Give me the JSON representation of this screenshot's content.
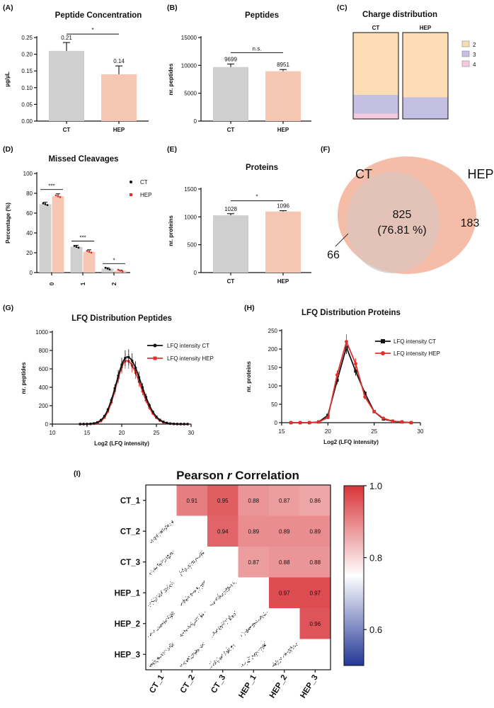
{
  "colors": {
    "ct_bar": "#cfcfcf",
    "hep_bar": "#f6c7b3",
    "charge2": "#fbdcb4",
    "charge3": "#c4c0e3",
    "charge4": "#f6c8de",
    "ct_line": "#111111",
    "hep_line": "#e0312f",
    "venn_ct": "#cfcfcf",
    "venn_hep": "#f4b79f"
  },
  "chart_data": [
    {
      "id": "A",
      "type": "bar",
      "panel_label": "(A)",
      "title": "Peptide Concentration",
      "ylabel": "µg/µL",
      "categories": [
        "CT",
        "HEP"
      ],
      "values": [
        0.21,
        0.14
      ],
      "errors": [
        0.025,
        0.025
      ],
      "value_labels": [
        "0.21",
        "0.14"
      ],
      "ylim": [
        0,
        0.25
      ],
      "yticks": [
        "0.00",
        "0.05",
        "0.10",
        "0.15",
        "0.20",
        "0.25"
      ],
      "significance": "*"
    },
    {
      "id": "B",
      "type": "bar",
      "panel_label": "(B)",
      "title": "Peptides",
      "ylabel": "nr. peptides",
      "categories": [
        "CT",
        "HEP"
      ],
      "values": [
        9699,
        8951
      ],
      "errors": [
        550,
        300
      ],
      "value_labels": [
        "9699",
        "8951"
      ],
      "ylim": [
        0,
        15000
      ],
      "yticks": [
        "0",
        "5000",
        "10000",
        "15000"
      ],
      "significance": "n.s."
    },
    {
      "id": "C",
      "type": "bar",
      "panel_label": "(C)",
      "title": "Charge distribution",
      "categories": [
        "CT",
        "HEP"
      ],
      "series": [
        {
          "name": "2",
          "values": [
            72,
            75
          ]
        },
        {
          "name": "3",
          "values": [
            22,
            25
          ]
        },
        {
          "name": "4",
          "values": [
            6,
            0
          ]
        }
      ],
      "legend": [
        "2",
        "3",
        "4"
      ]
    },
    {
      "id": "D",
      "type": "bar",
      "panel_label": "(D)",
      "title": "Missed Cleavages",
      "ylabel": "Percentage (%)",
      "categories": [
        "0",
        "1",
        "2"
      ],
      "series": [
        {
          "name": "CT",
          "values": [
            69,
            26,
            4
          ],
          "errors": [
            2,
            1.5,
            0.8
          ]
        },
        {
          "name": "HEP",
          "values": [
            77,
            21,
            2
          ],
          "errors": [
            2.5,
            2,
            0.5
          ]
        }
      ],
      "ylim": [
        0,
        100
      ],
      "yticks": [
        "0",
        "20",
        "40",
        "60",
        "80",
        "100"
      ],
      "significance": [
        "***",
        "***",
        "*"
      ],
      "legend": [
        "CT",
        "HEP"
      ]
    },
    {
      "id": "E",
      "type": "bar",
      "panel_label": "(E)",
      "title": "Proteins",
      "ylabel": "nr. proteins",
      "categories": [
        "CT",
        "HEP"
      ],
      "values": [
        1028,
        1096
      ],
      "errors": [
        30,
        15
      ],
      "value_labels": [
        "1028",
        "1096"
      ],
      "ylim": [
        0,
        1500
      ],
      "yticks": [
        "0",
        "500",
        "1000",
        "1500"
      ],
      "significance": "*"
    },
    {
      "id": "F",
      "type": "venn",
      "panel_label": "(F)",
      "sets": [
        "CT",
        "HEP"
      ],
      "ct_only": "66",
      "hep_only": "183",
      "overlap": "825",
      "overlap_pct": "(76.81 %)"
    },
    {
      "id": "G",
      "type": "line",
      "panel_label": "(G)",
      "title": "LFQ Distribution Peptides",
      "xlabel": "Log2 (LFQ intensity)",
      "ylabel": "nr. peptides",
      "xlim": [
        10,
        30
      ],
      "ylim": [
        0,
        1000
      ],
      "xticks": [
        "10",
        "15",
        "20",
        "25",
        "30"
      ],
      "yticks": [
        "0",
        "200",
        "400",
        "600",
        "800",
        "1000"
      ],
      "series": [
        {
          "name": "LFQ intensity CT",
          "peak_x": 20.8,
          "peak_y": 730,
          "width_left": 1.6,
          "width_right": 2.0,
          "x_range": [
            14,
            29.5
          ]
        },
        {
          "name": "LFQ intensity HEP",
          "peak_x": 20.7,
          "peak_y": 690,
          "width_left": 1.5,
          "width_right": 2.0,
          "x_range": [
            14,
            29.5
          ]
        }
      ]
    },
    {
      "id": "H",
      "type": "line",
      "panel_label": "(H)",
      "title": "LFQ Distribution Proteins",
      "xlabel": "Log2 (LFQ intensity)",
      "ylabel": "nr. proteins",
      "xlim": [
        15,
        30
      ],
      "ylim": [
        0,
        250
      ],
      "xticks": [
        "15",
        "20",
        "25",
        "30"
      ],
      "yticks": [
        "0",
        "50",
        "100",
        "150",
        "200",
        "250"
      ],
      "series": [
        {
          "name": "LFQ intensity CT",
          "x": [
            16,
            17,
            18,
            19,
            20,
            21,
            22,
            23,
            24,
            25,
            26,
            27,
            28,
            29
          ],
          "y": [
            0,
            0,
            0,
            2,
            20,
            115,
            205,
            140,
            80,
            30,
            10,
            4,
            2,
            0
          ]
        },
        {
          "name": "LFQ intensity HEP",
          "x": [
            16,
            17,
            18,
            19,
            20,
            21,
            22,
            23,
            24,
            25,
            26,
            27,
            28,
            29
          ],
          "y": [
            0,
            0,
            0,
            2,
            14,
            130,
            220,
            160,
            70,
            30,
            12,
            4,
            2,
            0
          ]
        }
      ]
    },
    {
      "id": "I",
      "type": "heatmap",
      "panel_label": "(I)",
      "title_prefix": "Pearson ",
      "title_italic": "r",
      "title_suffix": " Correlation",
      "labels": [
        "CT_1",
        "CT_2",
        "CT_3",
        "HEP_1",
        "HEP_2",
        "HEP_3"
      ],
      "matrix": [
        [
          null,
          0.91,
          0.95,
          0.88,
          0.87,
          0.86
        ],
        [
          null,
          null,
          0.94,
          0.89,
          0.89,
          0.89
        ],
        [
          null,
          null,
          null,
          0.87,
          0.88,
          0.88
        ],
        [
          null,
          null,
          null,
          null,
          0.97,
          0.97
        ],
        [
          null,
          null,
          null,
          null,
          null,
          0.96
        ],
        [
          null,
          null,
          null,
          null,
          null,
          null
        ]
      ],
      "colorbar_range": [
        0.5,
        1.0
      ],
      "colorbar_ticks": [
        "0.6",
        "0.8",
        "1.0"
      ]
    }
  ]
}
